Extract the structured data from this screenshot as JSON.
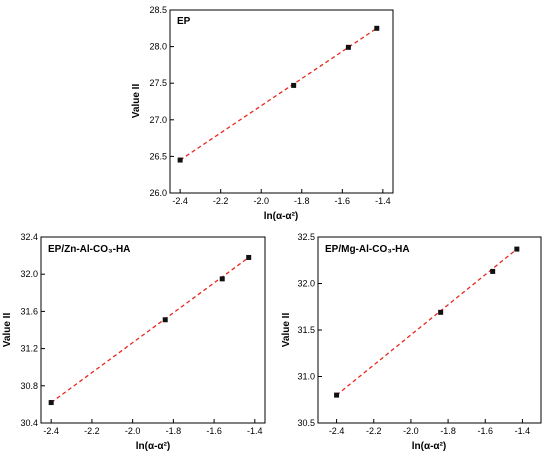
{
  "chart_data": [
    {
      "type": "scatter",
      "title": "EP",
      "xlabel": "ln(α-α²)",
      "ylabel": "Value II",
      "xlim": [
        -2.45,
        -1.35
      ],
      "ylim": [
        26.0,
        28.5
      ],
      "xticks": [
        -2.4,
        -2.2,
        -2.0,
        -1.8,
        -1.6,
        -1.4
      ],
      "xtick_labels": [
        "-2.4",
        "-2.2",
        "-2.0",
        "-1.8",
        "-1.6",
        "-1.4"
      ],
      "yticks": [
        26.0,
        26.5,
        27.0,
        27.5,
        28.0,
        28.5
      ],
      "ytick_labels": [
        "26.0",
        "26.5",
        "27.0",
        "27.5",
        "28.0",
        "28.5"
      ],
      "series": [
        {
          "points": [
            [
              -2.4,
              26.45
            ],
            [
              -1.84,
              27.47
            ],
            [
              -1.57,
              27.99
            ],
            [
              -1.43,
              28.25
            ]
          ]
        }
      ],
      "fit_line": [
        [
          -2.4,
          26.45
        ],
        [
          -1.43,
          28.25
        ]
      ],
      "grid": false
    },
    {
      "type": "scatter",
      "title": "EP/Zn-Al-CO₃-HA",
      "xlabel": "ln(α-α²)",
      "ylabel": "Value II",
      "xlim": [
        -2.45,
        -1.35
      ],
      "ylim": [
        30.4,
        32.4
      ],
      "xticks": [
        -2.4,
        -2.2,
        -2.0,
        -1.8,
        -1.6,
        -1.4
      ],
      "xtick_labels": [
        "-2.4",
        "-2.2",
        "-2.0",
        "-1.8",
        "-1.6",
        "-1.4"
      ],
      "yticks": [
        30.4,
        30.8,
        31.2,
        31.6,
        32.0,
        32.4
      ],
      "ytick_labels": [
        "30.4",
        "30.8",
        "31.2",
        "31.6",
        "32.0",
        "32.4"
      ],
      "series": [
        {
          "points": [
            [
              -2.4,
              30.62
            ],
            [
              -1.84,
              31.51
            ],
            [
              -1.56,
              31.95
            ],
            [
              -1.43,
              32.18
            ]
          ]
        }
      ],
      "fit_line": [
        [
          -2.4,
          30.62
        ],
        [
          -1.43,
          32.18
        ]
      ],
      "grid": false
    },
    {
      "type": "scatter",
      "title": "EP/Mg-Al-CO₃-HA",
      "xlabel": "ln(α-α²)",
      "ylabel": "Value II",
      "xlim": [
        -2.5,
        -1.3
      ],
      "ylim": [
        30.5,
        32.5
      ],
      "xticks": [
        -2.4,
        -2.2,
        -2.0,
        -1.8,
        -1.6,
        -1.4
      ],
      "xtick_labels": [
        "-2.4",
        "-2.2",
        "-2.0",
        "-1.8",
        "-1.6",
        "-1.4"
      ],
      "yticks": [
        30.5,
        31.0,
        31.5,
        32.0,
        32.5
      ],
      "ytick_labels": [
        "30.5",
        "31.0",
        "31.5",
        "32.0",
        "32.5"
      ],
      "series": [
        {
          "points": [
            [
              -2.4,
              30.8
            ],
            [
              -1.84,
              31.69
            ],
            [
              -1.56,
              32.13
            ],
            [
              -1.43,
              32.37
            ]
          ]
        }
      ],
      "fit_line": [
        [
          -2.4,
          30.8
        ],
        [
          -1.43,
          32.37
        ]
      ],
      "grid": false
    }
  ],
  "colors": {
    "marker": "#111111",
    "fit_line": "#e8281e",
    "axis": "#000000"
  }
}
